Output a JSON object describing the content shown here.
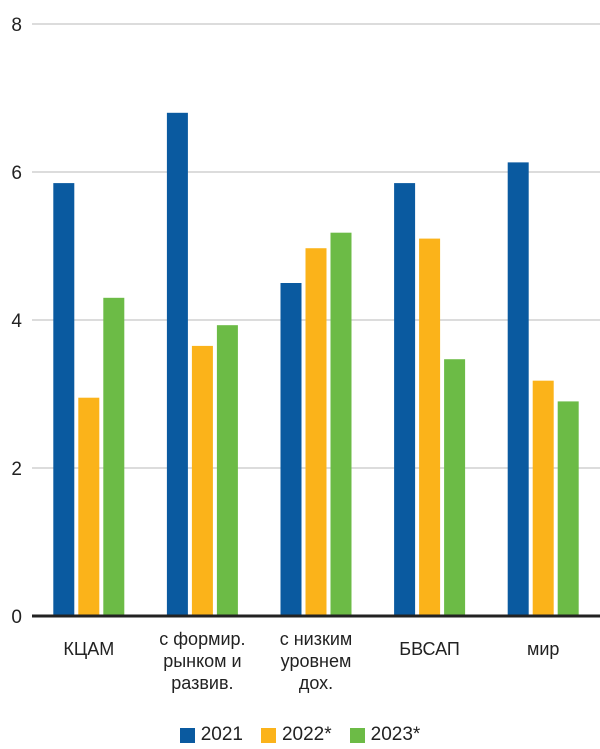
{
  "chart_data": {
    "type": "bar",
    "title": "",
    "xlabel": "",
    "ylabel": "",
    "ylim": [
      0,
      8
    ],
    "yticks": [
      0,
      2,
      4,
      6,
      8
    ],
    "grid": true,
    "legend_position": "bottom",
    "categories": [
      [
        "КЦАМ"
      ],
      [
        "с формир.",
        "рынком и",
        "развив."
      ],
      [
        "с низким",
        "уровнем",
        "дох."
      ],
      [
        "БВСАП"
      ],
      [
        "мир"
      ]
    ],
    "series": [
      {
        "name": "2021",
        "color": "#0a5aa0",
        "values": [
          5.85,
          6.8,
          4.5,
          5.85,
          6.13
        ]
      },
      {
        "name": "2022*",
        "color": "#fbb31a",
        "values": [
          2.95,
          3.65,
          4.97,
          5.1,
          3.18
        ]
      },
      {
        "name": "2023*",
        "color": "#6cbb46",
        "values": [
          4.3,
          3.93,
          5.18,
          3.47,
          2.9
        ]
      }
    ]
  }
}
